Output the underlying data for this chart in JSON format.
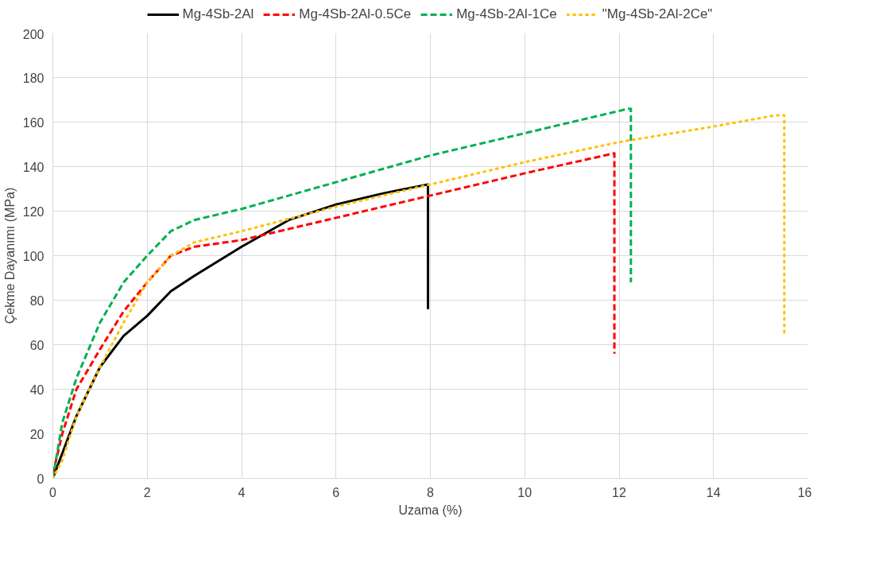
{
  "chart_data": {
    "type": "line",
    "xlabel": "Uzama (%)",
    "ylabel": "Çekme Dayanımı (MPa)",
    "xlim": [
      0,
      16
    ],
    "xticks": [
      0,
      2,
      4,
      6,
      8,
      10,
      12,
      14,
      16
    ],
    "ylim": [
      0,
      200
    ],
    "yticks": [
      0,
      20,
      40,
      60,
      80,
      100,
      120,
      140,
      160,
      180,
      200
    ],
    "grid": true,
    "legend": "top",
    "marker": "none",
    "series": [
      {
        "name": "Mg-4Sb-2Al",
        "color": "#000000",
        "line_style": "solid",
        "x": [
          0,
          0.5,
          1,
          1.5,
          2,
          2.5,
          3,
          4,
          5,
          6,
          7,
          7.95,
          7.95
        ],
        "values": [
          0,
          28,
          50,
          64,
          73,
          84,
          91,
          104,
          116,
          123,
          128,
          132,
          76
        ]
      },
      {
        "name": "Mg-4Sb-2Al-0.5Ce",
        "color": "#ff0000",
        "line_style": "dashed",
        "x": [
          0,
          0.2,
          0.5,
          1,
          1.5,
          2,
          2.5,
          3,
          4,
          5,
          6,
          8,
          10,
          11.9,
          11.9
        ],
        "values": [
          2,
          20,
          40,
          58,
          75,
          88,
          100,
          104,
          107,
          112,
          117,
          127,
          137,
          146,
          56
        ]
      },
      {
        "name": "Mg-4Sb-2Al-1Ce",
        "color": "#00b050",
        "line_style": "dashed",
        "x": [
          0,
          0.2,
          0.5,
          1,
          1.5,
          2,
          2.5,
          3,
          4,
          6,
          8,
          10,
          12.2,
          12.25,
          12.25
        ],
        "values": [
          0,
          25,
          45,
          70,
          88,
          100,
          111,
          116,
          121,
          133,
          145,
          155,
          166,
          166,
          88
        ]
      },
      {
        "name": "\"Mg-4Sb-2Al-2Ce\"",
        "color": "#ffc000",
        "line_style": "dotted",
        "x": [
          0,
          0.2,
          0.5,
          1,
          1.5,
          2,
          2.5,
          3,
          4,
          6,
          8,
          10,
          12,
          14,
          15.3,
          15.5,
          15.5
        ],
        "values": [
          0,
          8,
          28,
          50,
          70,
          88,
          100,
          106,
          111,
          122,
          132,
          142,
          151,
          158,
          163,
          163,
          65
        ]
      }
    ]
  }
}
